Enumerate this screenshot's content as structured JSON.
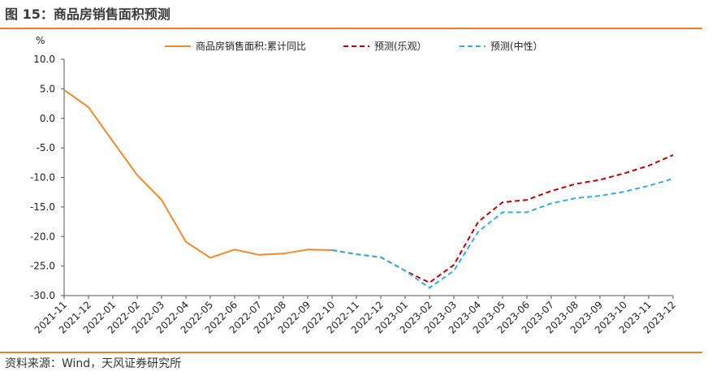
{
  "title": "图 15：商品房销售面积预测",
  "source": "资料来源：Wind，天风证券研究所",
  "colors": {
    "accent": "#e8822e",
    "actual": "#f0892a",
    "optimistic": "#c00000",
    "neutral": "#2fb0e0"
  },
  "chart_data": {
    "type": "line",
    "yunit": "%",
    "ylim": [
      -30,
      10
    ],
    "yticks": [
      "10.0",
      "5.0",
      "0.0",
      "-5.0",
      "-10.0",
      "-15.0",
      "-20.0",
      "-25.0",
      "-30.0"
    ],
    "categories": [
      "2021-11",
      "2021-12",
      "2022-01",
      "2022-02",
      "2022-03",
      "2022-04",
      "2022-05",
      "2022-06",
      "2022-07",
      "2022-08",
      "2022-09",
      "2022-10",
      "2022-11",
      "2022-12",
      "2023-01",
      "2023-02",
      "2023-03",
      "2023-04",
      "2023-05",
      "2023-06",
      "2023-07",
      "2023-08",
      "2023-09",
      "2023-10",
      "2023-11",
      "2023-12"
    ],
    "grid": false,
    "legend_position": "top",
    "series": [
      {
        "name": "商品房销售面积:累计同比",
        "style": "solid",
        "color": "#f0892a",
        "values": [
          4.8,
          1.9,
          -3.9,
          -9.6,
          -13.8,
          -20.9,
          -23.6,
          -22.2,
          -23.1,
          -22.9,
          -22.2,
          -22.3,
          null,
          null,
          null,
          null,
          null,
          null,
          null,
          null,
          null,
          null,
          null,
          null,
          null,
          null
        ]
      },
      {
        "name": "预测(乐观）",
        "style": "dashed",
        "color": "#c00000",
        "values": [
          null,
          null,
          null,
          null,
          null,
          null,
          null,
          null,
          null,
          null,
          null,
          -22.3,
          -23.0,
          -23.5,
          -25.8,
          -27.8,
          -24.8,
          -17.5,
          -14.2,
          -13.8,
          -12.3,
          -11.1,
          -10.4,
          -9.3,
          -8.0,
          -6.2
        ]
      },
      {
        "name": "预测(中性）",
        "style": "dashed",
        "color": "#2fb0e0",
        "values": [
          null,
          null,
          null,
          null,
          null,
          null,
          null,
          null,
          null,
          null,
          null,
          -22.3,
          -23.0,
          -23.5,
          -25.8,
          -28.7,
          -25.8,
          -19.2,
          -15.9,
          -15.9,
          -14.4,
          -13.5,
          -13.1,
          -12.4,
          -11.4,
          -10.2
        ]
      }
    ]
  }
}
